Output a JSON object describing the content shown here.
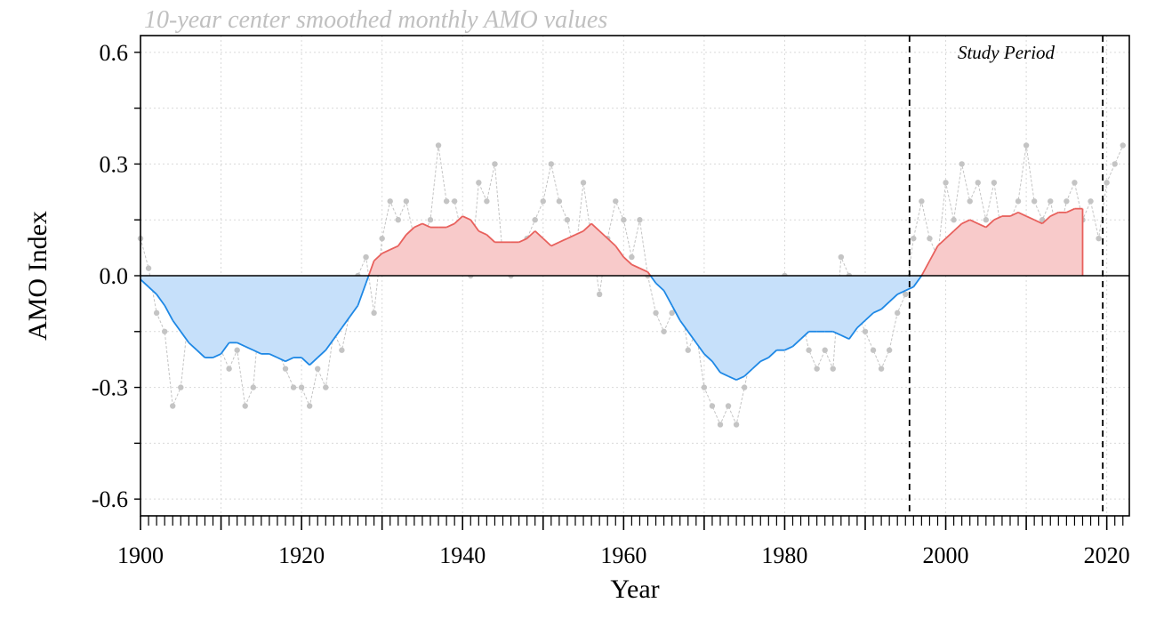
{
  "chart_data": {
    "type": "area",
    "title": "10-year center smoothed monthly AMO values",
    "xlabel": "Year",
    "ylabel": "AMO Index",
    "xlim": [
      1900,
      2022.8
    ],
    "ylim": [
      -0.645,
      0.645
    ],
    "x_ticks": [
      1900,
      1920,
      1940,
      1960,
      1980,
      2000,
      2020
    ],
    "y_ticks": [
      -0.6,
      -0.3,
      0.0,
      0.3,
      0.6
    ],
    "y_tick_labels": [
      "-0.6",
      "-0.3",
      "0.0",
      "0.3",
      "0.6"
    ],
    "grid": true,
    "annotations": [
      {
        "text": "Study Period",
        "x_start": 1995.5,
        "x_end": 2019.5
      }
    ],
    "series": [
      {
        "kind": "smoothed",
        "x": [
          1900,
          1901,
          1902,
          1903,
          1904,
          1905,
          1906,
          1907,
          1908,
          1909,
          1910,
          1911,
          1912,
          1913,
          1914,
          1915,
          1916,
          1917,
          1918,
          1919,
          1920,
          1921,
          1922,
          1923,
          1924,
          1925,
          1926,
          1927,
          1928,
          1929,
          1930,
          1931,
          1932,
          1933,
          1934,
          1935,
          1936,
          1937,
          1938,
          1939,
          1940,
          1941,
          1942,
          1943,
          1944,
          1945,
          1946,
          1947,
          1948,
          1949,
          1950,
          1951,
          1952,
          1953,
          1954,
          1955,
          1956,
          1957,
          1958,
          1959,
          1960,
          1961,
          1962,
          1963,
          1964,
          1965,
          1966,
          1967,
          1968,
          1969,
          1970,
          1971,
          1972,
          1973,
          1974,
          1975,
          1976,
          1977,
          1978,
          1979,
          1980,
          1981,
          1982,
          1983,
          1984,
          1985,
          1986,
          1987,
          1988,
          1989,
          1990,
          1991,
          1992,
          1993,
          1994,
          1995,
          1996,
          1997,
          1998,
          1999,
          2000,
          2001,
          2002,
          2003,
          2004,
          2005,
          2006,
          2007,
          2008,
          2009,
          2010,
          2011,
          2012,
          2013,
          2014,
          2015,
          2016,
          2017
        ],
        "y": [
          -0.01,
          -0.03,
          -0.05,
          -0.08,
          -0.12,
          -0.15,
          -0.18,
          -0.2,
          -0.22,
          -0.22,
          -0.21,
          -0.18,
          -0.18,
          -0.19,
          -0.2,
          -0.21,
          -0.21,
          -0.22,
          -0.23,
          -0.22,
          -0.22,
          -0.24,
          -0.22,
          -0.2,
          -0.17,
          -0.14,
          -0.11,
          -0.08,
          -0.02,
          0.04,
          0.06,
          0.07,
          0.08,
          0.11,
          0.13,
          0.14,
          0.13,
          0.13,
          0.13,
          0.14,
          0.16,
          0.15,
          0.12,
          0.11,
          0.09,
          0.09,
          0.09,
          0.09,
          0.1,
          0.12,
          0.1,
          0.08,
          0.09,
          0.1,
          0.11,
          0.12,
          0.14,
          0.12,
          0.1,
          0.08,
          0.05,
          0.03,
          0.02,
          0.01,
          -0.02,
          -0.04,
          -0.08,
          -0.12,
          -0.15,
          -0.18,
          -0.21,
          -0.23,
          -0.26,
          -0.27,
          -0.28,
          -0.27,
          -0.25,
          -0.23,
          -0.22,
          -0.2,
          -0.2,
          -0.19,
          -0.17,
          -0.15,
          -0.15,
          -0.15,
          -0.15,
          -0.16,
          -0.17,
          -0.14,
          -0.12,
          -0.1,
          -0.09,
          -0.07,
          -0.05,
          -0.04,
          -0.03,
          0.0,
          0.04,
          0.08,
          0.1,
          0.12,
          0.14,
          0.15,
          0.14,
          0.13,
          0.15,
          0.16,
          0.16,
          0.17,
          0.16,
          0.15,
          0.14,
          0.16,
          0.17,
          0.17,
          0.18,
          0.18
        ],
        "positive_fill": "#f8caca",
        "positive_line": "#e8605c",
        "negative_fill": "#c6e0fa",
        "negative_line": "#1e88e5"
      },
      {
        "kind": "annual-anomalies",
        "x": [
          1900,
          1901,
          1902,
          1903,
          1904,
          1905,
          1906,
          1907,
          1908,
          1909,
          1910,
          1911,
          1912,
          1913,
          1914,
          1915,
          1916,
          1917,
          1918,
          1919,
          1920,
          1921,
          1922,
          1923,
          1924,
          1925,
          1926,
          1927,
          1928,
          1929,
          1930,
          1931,
          1932,
          1933,
          1934,
          1935,
          1936,
          1937,
          1938,
          1939,
          1940,
          1941,
          1942,
          1943,
          1944,
          1945,
          1946,
          1947,
          1948,
          1949,
          1950,
          1951,
          1952,
          1953,
          1954,
          1955,
          1956,
          1957,
          1958,
          1959,
          1960,
          1961,
          1962,
          1963,
          1964,
          1965,
          1966,
          1967,
          1968,
          1969,
          1970,
          1971,
          1972,
          1973,
          1974,
          1975,
          1976,
          1977,
          1978,
          1979,
          1980,
          1981,
          1982,
          1983,
          1984,
          1985,
          1986,
          1987,
          1988,
          1989,
          1990,
          1991,
          1992,
          1993,
          1994,
          1995,
          1996,
          1997,
          1998,
          1999,
          2000,
          2001,
          2002,
          2003,
          2004,
          2005,
          2006,
          2007,
          2008,
          2009,
          2010,
          2011,
          2012,
          2013,
          2014,
          2015,
          2016,
          2017,
          2018,
          2019,
          2020,
          2021,
          2022
        ],
        "y": [
          0.1,
          0.02,
          -0.1,
          -0.15,
          -0.35,
          -0.3,
          -0.1,
          -0.15,
          -0.2,
          -0.15,
          -0.2,
          -0.25,
          -0.2,
          -0.35,
          -0.3,
          -0.05,
          -0.1,
          -0.2,
          -0.25,
          -0.3,
          -0.3,
          -0.35,
          -0.25,
          -0.3,
          -0.15,
          -0.2,
          -0.1,
          0.0,
          0.05,
          -0.1,
          0.1,
          0.2,
          0.15,
          0.2,
          0.1,
          0.1,
          0.15,
          0.35,
          0.2,
          0.2,
          0.1,
          0.0,
          0.25,
          0.2,
          0.3,
          0.05,
          0.0,
          0.05,
          0.1,
          0.15,
          0.2,
          0.3,
          0.2,
          0.15,
          0.05,
          0.25,
          0.1,
          -0.05,
          0.1,
          0.2,
          0.15,
          0.05,
          0.15,
          0.0,
          -0.1,
          -0.15,
          -0.1,
          -0.05,
          -0.2,
          -0.15,
          -0.3,
          -0.35,
          -0.4,
          -0.35,
          -0.4,
          -0.3,
          -0.2,
          -0.15,
          -0.1,
          -0.05,
          0.0,
          -0.15,
          -0.1,
          -0.2,
          -0.25,
          -0.2,
          -0.25,
          0.05,
          0.0,
          -0.1,
          -0.15,
          -0.2,
          -0.25,
          -0.2,
          -0.1,
          -0.05,
          0.1,
          0.2,
          0.1,
          0.05,
          0.25,
          0.15,
          0.3,
          0.2,
          0.25,
          0.15,
          0.25,
          0.1,
          0.15,
          0.2,
          0.35,
          0.2,
          0.15,
          0.2,
          0.1,
          0.2,
          0.25,
          0.15,
          0.2,
          0.1,
          0.25,
          0.3,
          0.35
        ],
        "color": "#c4c4c4"
      }
    ]
  }
}
